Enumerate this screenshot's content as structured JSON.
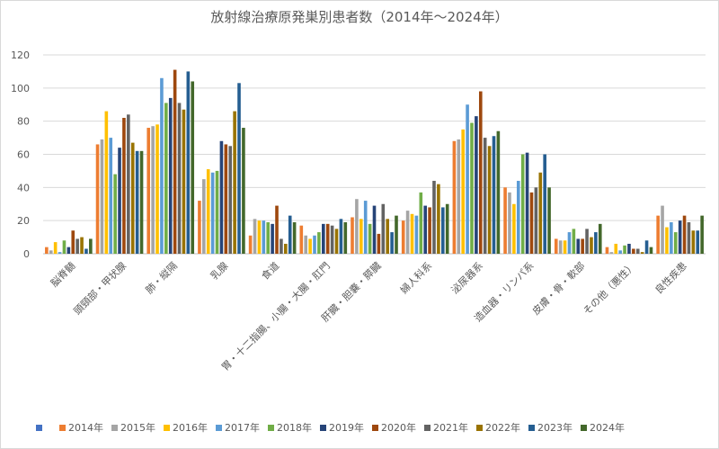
{
  "chart_data": {
    "type": "bar",
    "title": "放射線治療原発巣別患者数（2014年～2024年）",
    "xlabel": "",
    "ylabel": "",
    "ylim": [
      0,
      120
    ],
    "yticks": [
      0,
      20,
      40,
      60,
      80,
      100,
      120
    ],
    "grid": true,
    "legend_position": "bottom",
    "categories": [
      "脳脊髄",
      "頭頸部・甲状腺",
      "肺・縦隔",
      "乳腺",
      "食道",
      "胃・十二指腸、小腸・大腸・肛門",
      "肝臓・胆嚢・膵臓",
      "婦人科系",
      "泌尿器系",
      "造血器・リンパ系",
      "皮膚・骨・軟部",
      "その他（悪性）",
      "良性疾患"
    ],
    "series": [
      {
        "name": "2014年",
        "color": "#ED7D31",
        "values": [
          4,
          66,
          76,
          32,
          11,
          17,
          22,
          20,
          68,
          40,
          9,
          4,
          23
        ]
      },
      {
        "name": "2015年",
        "color": "#A5A5A5",
        "values": [
          2,
          69,
          77,
          45,
          21,
          11,
          33,
          26,
          69,
          37,
          8,
          1,
          29
        ]
      },
      {
        "name": "2016年",
        "color": "#FFC000",
        "values": [
          7,
          86,
          78,
          51,
          20,
          9,
          21,
          24,
          75,
          30,
          8,
          6,
          16
        ]
      },
      {
        "name": "2017年",
        "color": "#5B9BD5",
        "values": [
          1,
          70,
          106,
          49,
          20,
          11,
          32,
          23,
          90,
          44,
          13,
          2,
          19
        ]
      },
      {
        "name": "2018年",
        "color": "#70AD47",
        "values": [
          8,
          48,
          91,
          50,
          19,
          13,
          18,
          37,
          79,
          60,
          15,
          5,
          13
        ]
      },
      {
        "name": "2019年",
        "color": "#264478",
        "values": [
          4,
          64,
          94,
          68,
          18,
          18,
          29,
          29,
          83,
          61,
          9,
          6,
          20
        ]
      },
      {
        "name": "2020年",
        "color": "#9E480E",
        "values": [
          14,
          82,
          111,
          66,
          29,
          18,
          12,
          28,
          98,
          37,
          9,
          3,
          23
        ]
      },
      {
        "name": "2021年",
        "color": "#636363",
        "values": [
          9,
          84,
          91,
          65,
          9,
          17,
          30,
          44,
          70,
          40,
          15,
          3,
          19
        ]
      },
      {
        "name": "2022年",
        "color": "#997300",
        "values": [
          10,
          67,
          87,
          86,
          6,
          15,
          21,
          42,
          65,
          49,
          10,
          1,
          14
        ]
      },
      {
        "name": "2023年",
        "color": "#255E91",
        "values": [
          3,
          62,
          110,
          103,
          23,
          21,
          13,
          28,
          71,
          60,
          13,
          8,
          14
        ]
      },
      {
        "name": "2024年",
        "color": "#43682B",
        "values": [
          9,
          62,
          104,
          76,
          19,
          19,
          23,
          30,
          74,
          40,
          18,
          4,
          23
        ]
      }
    ]
  },
  "legend": {
    "blank_entry_color": "#4472C4",
    "items": [
      "2014年",
      "2015年",
      "2016年",
      "2017年",
      "2018年",
      "2019年",
      "2020年",
      "2021年",
      "2022年",
      "2023年",
      "2024年"
    ]
  }
}
